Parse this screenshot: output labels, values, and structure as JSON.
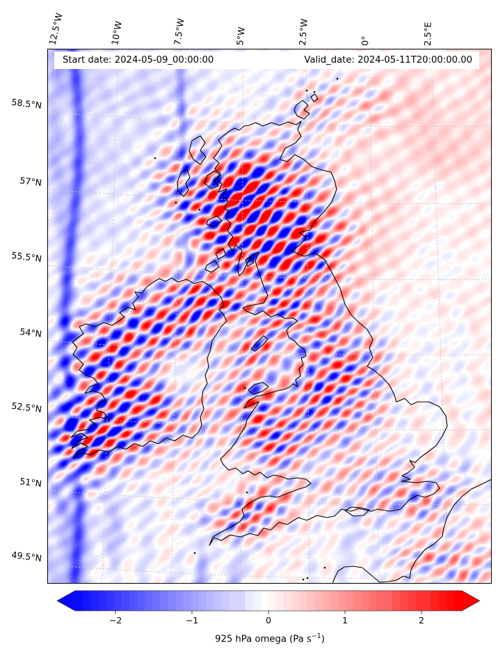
{
  "header": {
    "start_date": "Start date: 2024-05-09_00:00:00",
    "valid_date": "Valid_date: 2024-05-11T20:00:00.00"
  },
  "chart_data": {
    "type": "heatmap",
    "title": "",
    "variable": "omega (vertical velocity)",
    "pressure_level": "925 hPa",
    "region": "United Kingdom and Ireland with surrounding seas (map with coastlines)",
    "annotations": [
      "Start date: 2024-05-09_00:00:00",
      "Valid_date: 2024-05-11T20:00:00.00"
    ],
    "x_axis": {
      "tick_labels": [
        "12.5°W",
        "10°W",
        "7.5°W",
        "5°W",
        "2.5°W",
        "0°",
        "2.5°E"
      ],
      "position": "top",
      "label_rotation": "vertical"
    },
    "y_axis": {
      "tick_labels": [
        "58.5°N",
        "57°N",
        "55.5°N",
        "54°N",
        "52.5°N",
        "51°N",
        "49.5°N"
      ],
      "position": "left"
    },
    "grid": true,
    "grid_style": "dashed gray graticule",
    "colorbar": {
      "orientation": "horizontal",
      "label_text": "925 hPa omega (Pa s⁻¹)",
      "label_prefix": "925 hPa omega (Pa s",
      "label_sup": "−1",
      "label_suffix": ")",
      "ticks": [
        -2,
        -1,
        0,
        1,
        2
      ],
      "tick_labels": [
        "−2",
        "−1",
        "0",
        "1",
        "2"
      ],
      "vmin": -2.5,
      "vmax": 2.5,
      "level_step": 0.1,
      "colormap": "bwr",
      "extend": "both",
      "color_min": "#0000ff",
      "color_mid": "#ffffff",
      "color_max": "#ff0000"
    },
    "field_summary": "Strong alternating SW-NE oriented red/blue mountain-wave bands (values saturating beyond ±2.5 Pa/s) over Scotland, Ireland, Wales and northern England; faint values (±0.3) over the seas; narrow north-south blue streaks over the eastern Atlantic near the left of the map; faint NW-SE streaks over the North Sea."
  }
}
